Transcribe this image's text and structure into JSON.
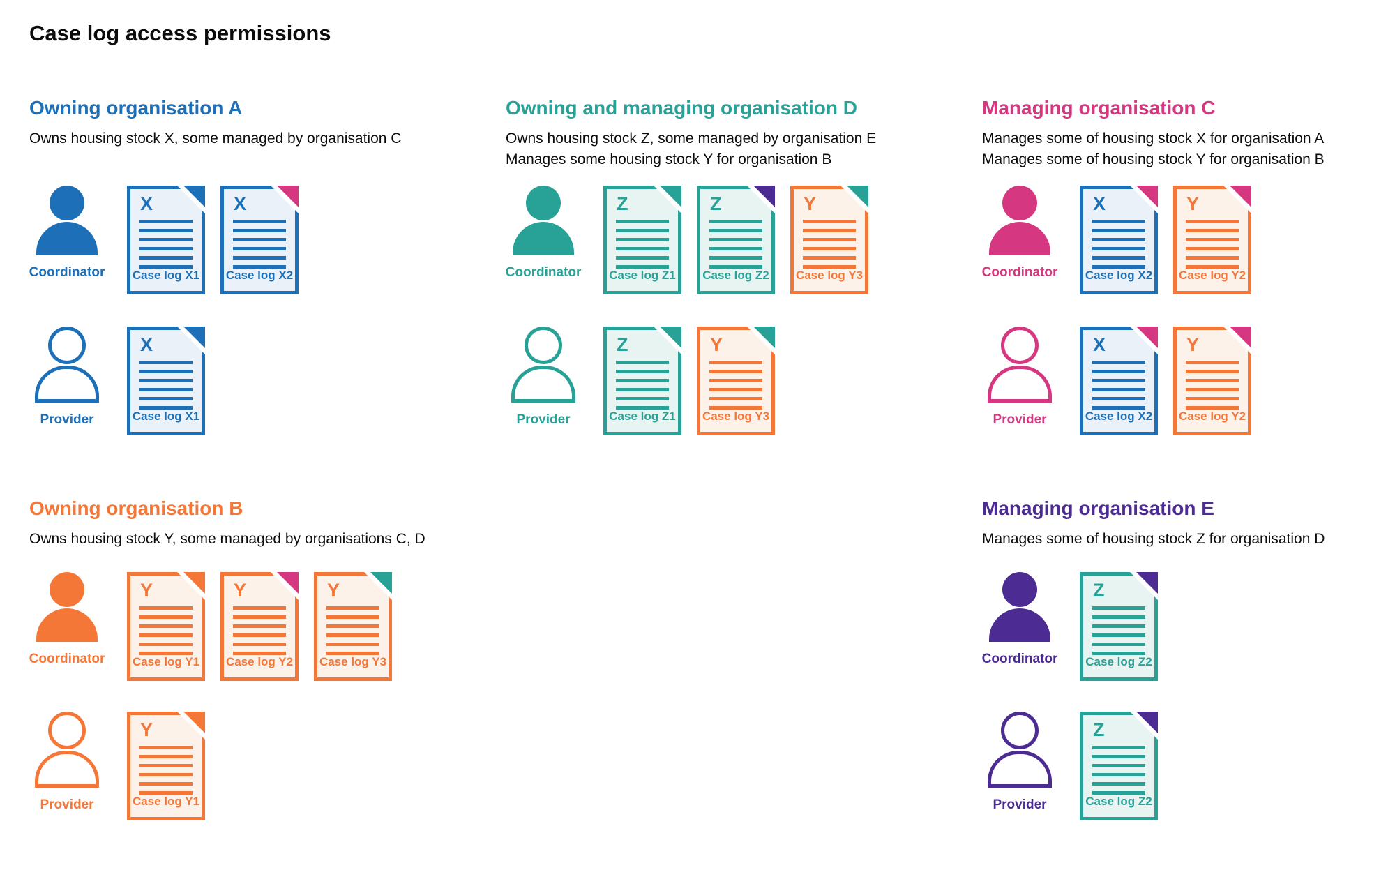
{
  "title": "Case log access permissions",
  "palette": {
    "blue": "#1d70b8",
    "teal": "#28a197",
    "pink": "#d53880",
    "orange": "#f47738",
    "purple": "#4c2c92",
    "text": "#0b0c0c",
    "doc_fill_blue": "#eaf1f8",
    "doc_fill_teal": "#e7f4f2",
    "doc_fill_orange": "#fdf2ea"
  },
  "sections": [
    {
      "id": "org-a",
      "heading": "Owning organisation A",
      "color": "blue",
      "description": [
        "Owns housing stock X, some managed by organisation C"
      ],
      "groups": [
        {
          "persona": "Coordinator",
          "docs": [
            {
              "letter": "X",
              "label": "Case log X1",
              "color": "blue",
              "fold": "blue"
            },
            {
              "letter": "X",
              "label": "Case log X2",
              "color": "blue",
              "fold": "pink"
            }
          ]
        },
        {
          "persona": "Provider",
          "docs": [
            {
              "letter": "X",
              "label": "Case log X1",
              "color": "blue",
              "fold": "blue"
            }
          ]
        }
      ]
    },
    {
      "id": "org-d",
      "heading": "Owning and managing organisation D",
      "color": "teal",
      "description": [
        "Owns housing stock Z, some managed by organisation E",
        "Manages some housing stock Y for organisation B"
      ],
      "groups": [
        {
          "persona": "Coordinator",
          "docs": [
            {
              "letter": "Z",
              "label": "Case log Z1",
              "color": "teal",
              "fold": "teal"
            },
            {
              "letter": "Z",
              "label": "Case log Z2",
              "color": "teal",
              "fold": "purple"
            },
            {
              "letter": "Y",
              "label": "Case log Y3",
              "color": "orange",
              "fold": "teal"
            }
          ]
        },
        {
          "persona": "Provider",
          "docs": [
            {
              "letter": "Z",
              "label": "Case log Z1",
              "color": "teal",
              "fold": "teal"
            },
            {
              "letter": "Y",
              "label": "Case log Y3",
              "color": "orange",
              "fold": "teal"
            }
          ]
        }
      ]
    },
    {
      "id": "org-c",
      "heading": "Managing organisation C",
      "color": "pink",
      "description": [
        "Manages some of housing stock X for organisation A",
        "Manages some of housing stock Y for organisation B"
      ],
      "groups": [
        {
          "persona": "Coordinator",
          "docs": [
            {
              "letter": "X",
              "label": "Case log X2",
              "color": "blue",
              "fold": "pink"
            },
            {
              "letter": "Y",
              "label": "Case log Y2",
              "color": "orange",
              "fold": "pink"
            }
          ]
        },
        {
          "persona": "Provider",
          "docs": [
            {
              "letter": "X",
              "label": "Case log X2",
              "color": "blue",
              "fold": "pink"
            },
            {
              "letter": "Y",
              "label": "Case log Y2",
              "color": "orange",
              "fold": "pink"
            }
          ]
        }
      ]
    },
    {
      "id": "org-b",
      "heading": "Owning organisation B",
      "color": "orange",
      "description": [
        "Owns housing stock Y, some managed by organisations C, D"
      ],
      "groups": [
        {
          "persona": "Coordinator",
          "docs": [
            {
              "letter": "Y",
              "label": "Case log Y1",
              "color": "orange",
              "fold": "orange"
            },
            {
              "letter": "Y",
              "label": "Case log Y2",
              "color": "orange",
              "fold": "pink"
            },
            {
              "letter": "Y",
              "label": "Case log Y3",
              "color": "orange",
              "fold": "teal"
            }
          ]
        },
        {
          "persona": "Provider",
          "docs": [
            {
              "letter": "Y",
              "label": "Case log Y1",
              "color": "orange",
              "fold": "orange"
            }
          ]
        }
      ]
    },
    {
      "id": "org-e",
      "heading": "Managing organisation E",
      "color": "purple",
      "description": [
        "Manages some of housing stock Z for organisation D"
      ],
      "groups": [
        {
          "persona": "Coordinator",
          "docs": [
            {
              "letter": "Z",
              "label": "Case log Z2",
              "color": "teal",
              "fold": "purple"
            }
          ]
        },
        {
          "persona": "Provider",
          "docs": [
            {
              "letter": "Z",
              "label": "Case log Z2",
              "color": "teal",
              "fold": "purple"
            }
          ]
        }
      ]
    }
  ]
}
